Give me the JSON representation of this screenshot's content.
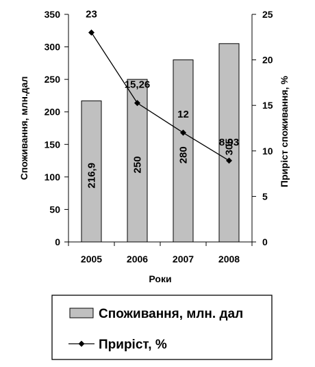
{
  "chart_data": {
    "type": "bar",
    "categories": [
      "2005",
      "2006",
      "2007",
      "2008"
    ],
    "series": [
      {
        "name": "Споживання, млн. дал",
        "type": "bar",
        "axis": "left",
        "values": [
          216.9,
          250,
          280,
          305
        ],
        "labels": [
          "216,9",
          "250",
          "280",
          "305"
        ],
        "color": "#c0c0c0"
      },
      {
        "name": "Приріст, %",
        "type": "line",
        "axis": "right",
        "values": [
          23,
          15.26,
          12,
          8.93
        ],
        "labels": [
          "23",
          "15,26",
          "12",
          "8,93"
        ],
        "color": "#000000"
      }
    ],
    "xlabel": "Роки",
    "ylabel": "Споживання, млн.дал",
    "y2label": "Приріст споживання, %",
    "ylim": [
      0,
      350
    ],
    "yticks": [
      0,
      50,
      100,
      150,
      200,
      250,
      300,
      350
    ],
    "y2lim": [
      0,
      25
    ],
    "y2ticks": [
      0,
      5,
      10,
      15,
      20,
      25
    ],
    "grid": false,
    "legend_position": "bottom"
  }
}
